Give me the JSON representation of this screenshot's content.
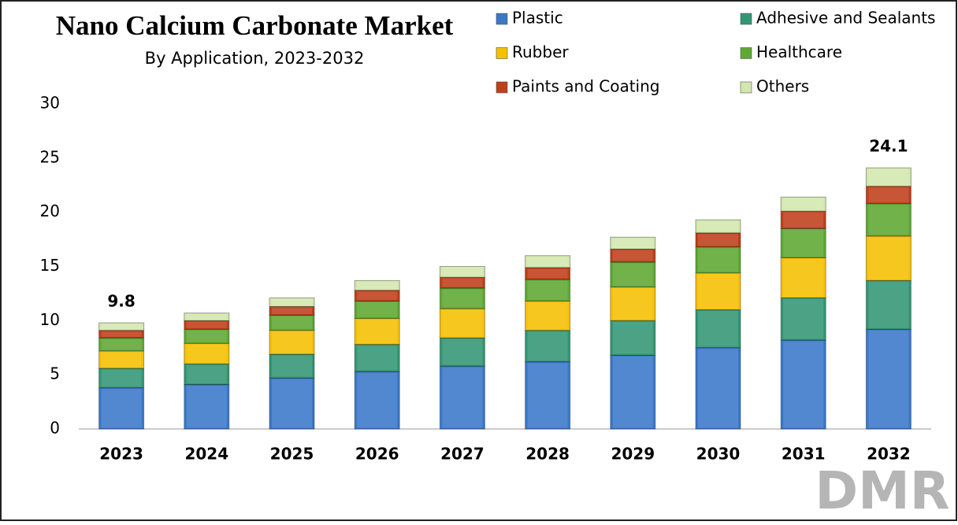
{
  "chart_data": {
    "type": "stacked_bar",
    "title": "Nano Calcium Carbonate Market",
    "subtitle": "By Application, 2023-2032",
    "categories": [
      "2023",
      "2024",
      "2025",
      "2026",
      "2027",
      "2028",
      "2029",
      "2030",
      "2031",
      "2032"
    ],
    "series": [
      {
        "name": "Plastic",
        "color": "#3a78c9",
        "values": [
          3.8,
          4.1,
          4.7,
          5.3,
          5.8,
          6.2,
          6.8,
          7.5,
          8.2,
          9.2
        ]
      },
      {
        "name": "Adhesive and Sealants",
        "color": "#339673",
        "values": [
          1.8,
          1.9,
          2.2,
          2.5,
          2.6,
          2.9,
          3.2,
          3.5,
          3.9,
          4.5
        ]
      },
      {
        "name": "Rubber",
        "color": "#f5c000",
        "values": [
          1.6,
          1.9,
          2.2,
          2.4,
          2.7,
          2.7,
          3.1,
          3.4,
          3.7,
          4.1
        ]
      },
      {
        "name": "Healthcare",
        "color": "#5ea833",
        "values": [
          1.2,
          1.3,
          1.4,
          1.6,
          1.9,
          2.0,
          2.3,
          2.4,
          2.7,
          3.0
        ]
      },
      {
        "name": "Paints and Coating",
        "color": "#bf3f1a",
        "values": [
          0.7,
          0.8,
          0.8,
          1.0,
          1.0,
          1.1,
          1.2,
          1.3,
          1.6,
          1.6
        ]
      },
      {
        "name": "Others",
        "color": "#d3e7ae",
        "values": [
          0.7,
          0.7,
          0.8,
          0.9,
          1.0,
          1.1,
          1.1,
          1.2,
          1.3,
          1.7
        ]
      }
    ],
    "total_labels": [
      "9.8",
      null,
      null,
      null,
      null,
      null,
      null,
      null,
      null,
      "24.1"
    ],
    "ylim": [
      0,
      30
    ],
    "yticks": [
      0,
      5,
      10,
      15,
      20,
      25,
      30
    ],
    "grid": false
  },
  "logo": "DMR"
}
